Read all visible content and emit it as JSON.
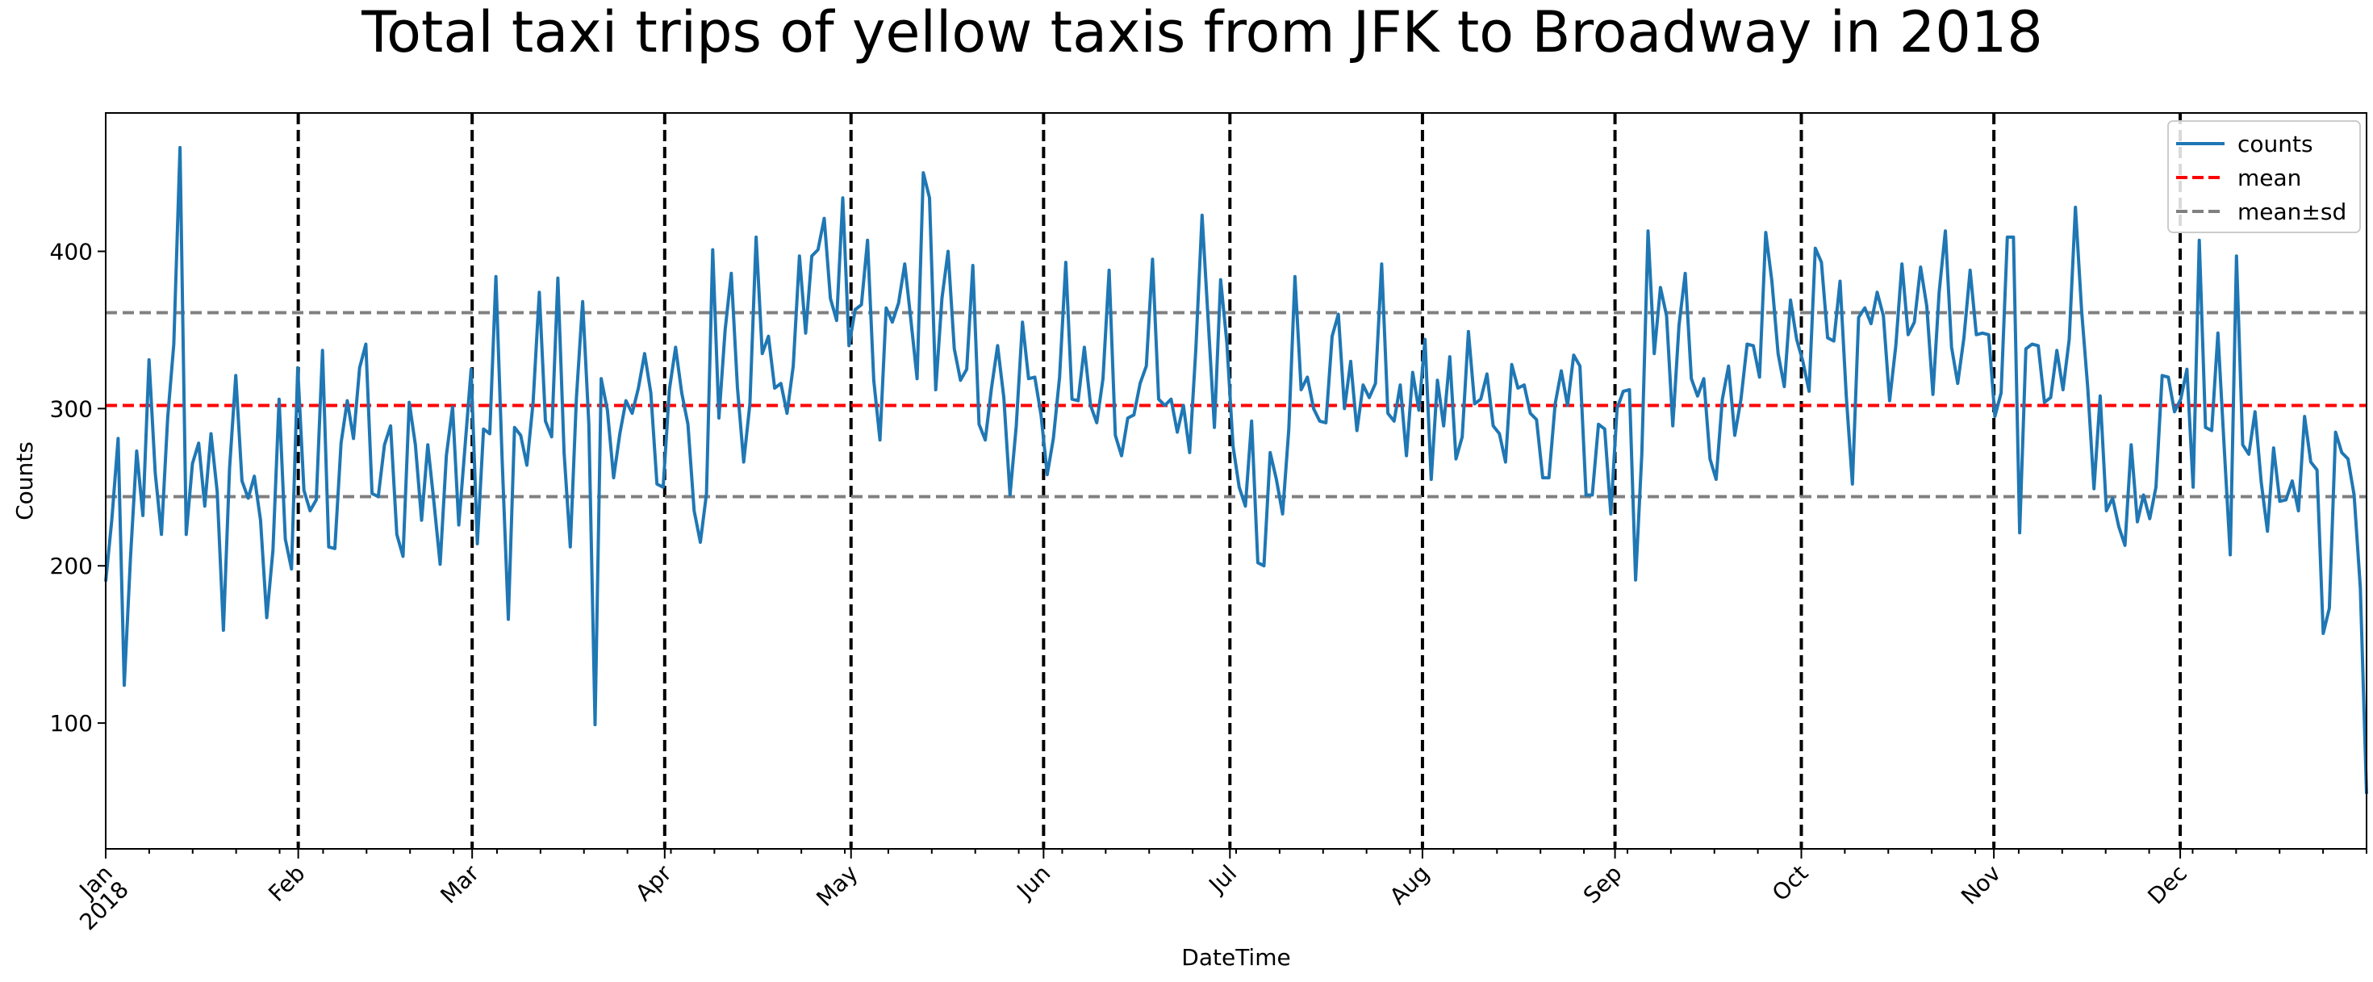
{
  "chart_data": {
    "type": "line",
    "title": "Total taxi trips of yellow taxis from JFK to Broadway in 2018",
    "xlabel": "DateTime",
    "ylabel": "Counts",
    "ylim": [
      20,
      488
    ],
    "yticks": [
      100,
      200,
      300,
      400
    ],
    "x_start": "2018-01-01",
    "x_end": "2018-12-31",
    "xticks": [
      {
        "date": "2018-01-01",
        "label": "Jan",
        "sublabel": "2018"
      },
      {
        "date": "2018-02-01",
        "label": "Feb"
      },
      {
        "date": "2018-03-01",
        "label": "Mar"
      },
      {
        "date": "2018-04-01",
        "label": "Apr"
      },
      {
        "date": "2018-05-01",
        "label": "May"
      },
      {
        "date": "2018-06-01",
        "label": "Jun"
      },
      {
        "date": "2018-07-01",
        "label": "Jul"
      },
      {
        "date": "2018-08-01",
        "label": "Aug"
      },
      {
        "date": "2018-09-01",
        "label": "Sep"
      },
      {
        "date": "2018-10-01",
        "label": "Oct"
      },
      {
        "date": "2018-11-01",
        "label": "Nov"
      },
      {
        "date": "2018-12-01",
        "label": "Dec"
      }
    ],
    "series": [
      {
        "name": "counts",
        "color": "#1f77b4",
        "values": [
          190,
          230,
          281,
          124,
          205,
          273,
          232,
          331,
          259,
          220,
          294,
          341,
          466,
          220,
          265,
          278,
          238,
          284,
          247,
          159,
          262,
          321,
          254,
          243,
          257,
          229,
          167,
          210,
          306,
          217,
          198,
          326,
          248,
          235,
          242,
          337,
          212,
          211,
          278,
          305,
          281,
          326,
          341,
          246,
          244,
          277,
          289,
          220,
          206,
          304,
          277,
          229,
          277,
          240,
          201,
          270,
          301,
          226,
          275,
          325,
          214,
          287,
          284,
          384,
          268,
          166,
          288,
          283,
          264,
          304,
          374,
          292,
          282,
          383,
          272,
          212,
          307,
          368,
          290,
          99,
          319,
          299,
          256,
          284,
          305,
          297,
          313,
          335,
          310,
          252,
          250,
          312,
          339,
          310,
          290,
          235,
          215,
          246,
          401,
          294,
          350,
          386,
          313,
          266,
          303,
          409,
          335,
          346,
          313,
          316,
          297,
          327,
          397,
          348,
          397,
          401,
          421,
          370,
          356,
          434,
          340,
          363,
          366,
          407,
          318,
          280,
          364,
          355,
          367,
          392,
          356,
          319,
          450,
          434,
          312,
          370,
          400,
          338,
          318,
          325,
          391,
          290,
          280,
          313,
          340,
          307,
          245,
          289,
          355,
          319,
          320,
          296,
          258,
          281,
          320,
          393,
          306,
          305,
          339,
          302,
          291,
          319,
          388,
          283,
          270,
          294,
          296,
          316,
          327,
          395,
          306,
          302,
          306,
          285,
          302,
          272,
          338,
          423,
          355,
          288,
          382,
          342,
          276,
          250,
          238,
          292,
          202,
          200,
          272,
          255,
          233,
          287,
          384,
          312,
          320,
          300,
          292,
          291,
          346,
          360,
          300,
          330,
          286,
          315,
          307,
          316,
          392,
          297,
          292,
          315,
          270,
          323,
          299,
          344,
          255,
          318,
          289,
          333,
          268,
          282,
          349,
          303,
          306,
          322,
          289,
          284,
          266,
          328,
          313,
          315,
          297,
          293,
          256,
          256,
          303,
          324,
          302,
          334,
          327,
          245,
          245,
          290,
          287,
          233,
          300,
          311,
          312,
          191,
          271,
          413,
          335,
          377,
          359,
          289,
          353,
          386,
          319,
          308,
          319,
          268,
          255,
          306,
          327,
          283,
          306,
          341,
          340,
          320,
          412,
          381,
          335,
          314,
          369,
          344,
          330,
          311,
          402,
          393,
          345,
          343,
          381,
          308,
          252,
          358,
          364,
          354,
          374,
          359,
          305,
          340,
          392,
          347,
          355,
          390,
          365,
          309,
          374,
          413,
          339,
          316,
          345,
          388,
          347,
          348,
          347,
          295,
          310,
          409,
          409,
          221,
          338,
          341,
          340,
          304,
          307,
          337,
          312,
          344,
          428,
          362,
          313,
          249,
          308,
          235,
          243,
          225,
          213,
          277,
          228,
          245,
          230,
          250,
          321,
          320,
          298,
          306,
          325,
          250,
          407,
          288,
          286,
          348,
          277,
          207,
          397,
          277,
          271,
          298,
          253,
          222,
          275,
          241,
          242,
          254,
          235,
          295,
          266,
          261,
          157,
          173,
          285,
          272,
          268,
          245,
          186,
          55
        ]
      }
    ],
    "mean": {
      "name": "mean",
      "value": 302,
      "color": "#ff0000"
    },
    "sd_band": {
      "name": "mean±sd",
      "lower": 244,
      "upper": 361,
      "color": "#808080"
    },
    "month_lines": {
      "color": "#000000",
      "style": "dashed"
    },
    "legend": {
      "placement": "top-right",
      "entries": [
        "counts",
        "mean",
        "mean±sd"
      ]
    },
    "grid": false
  }
}
